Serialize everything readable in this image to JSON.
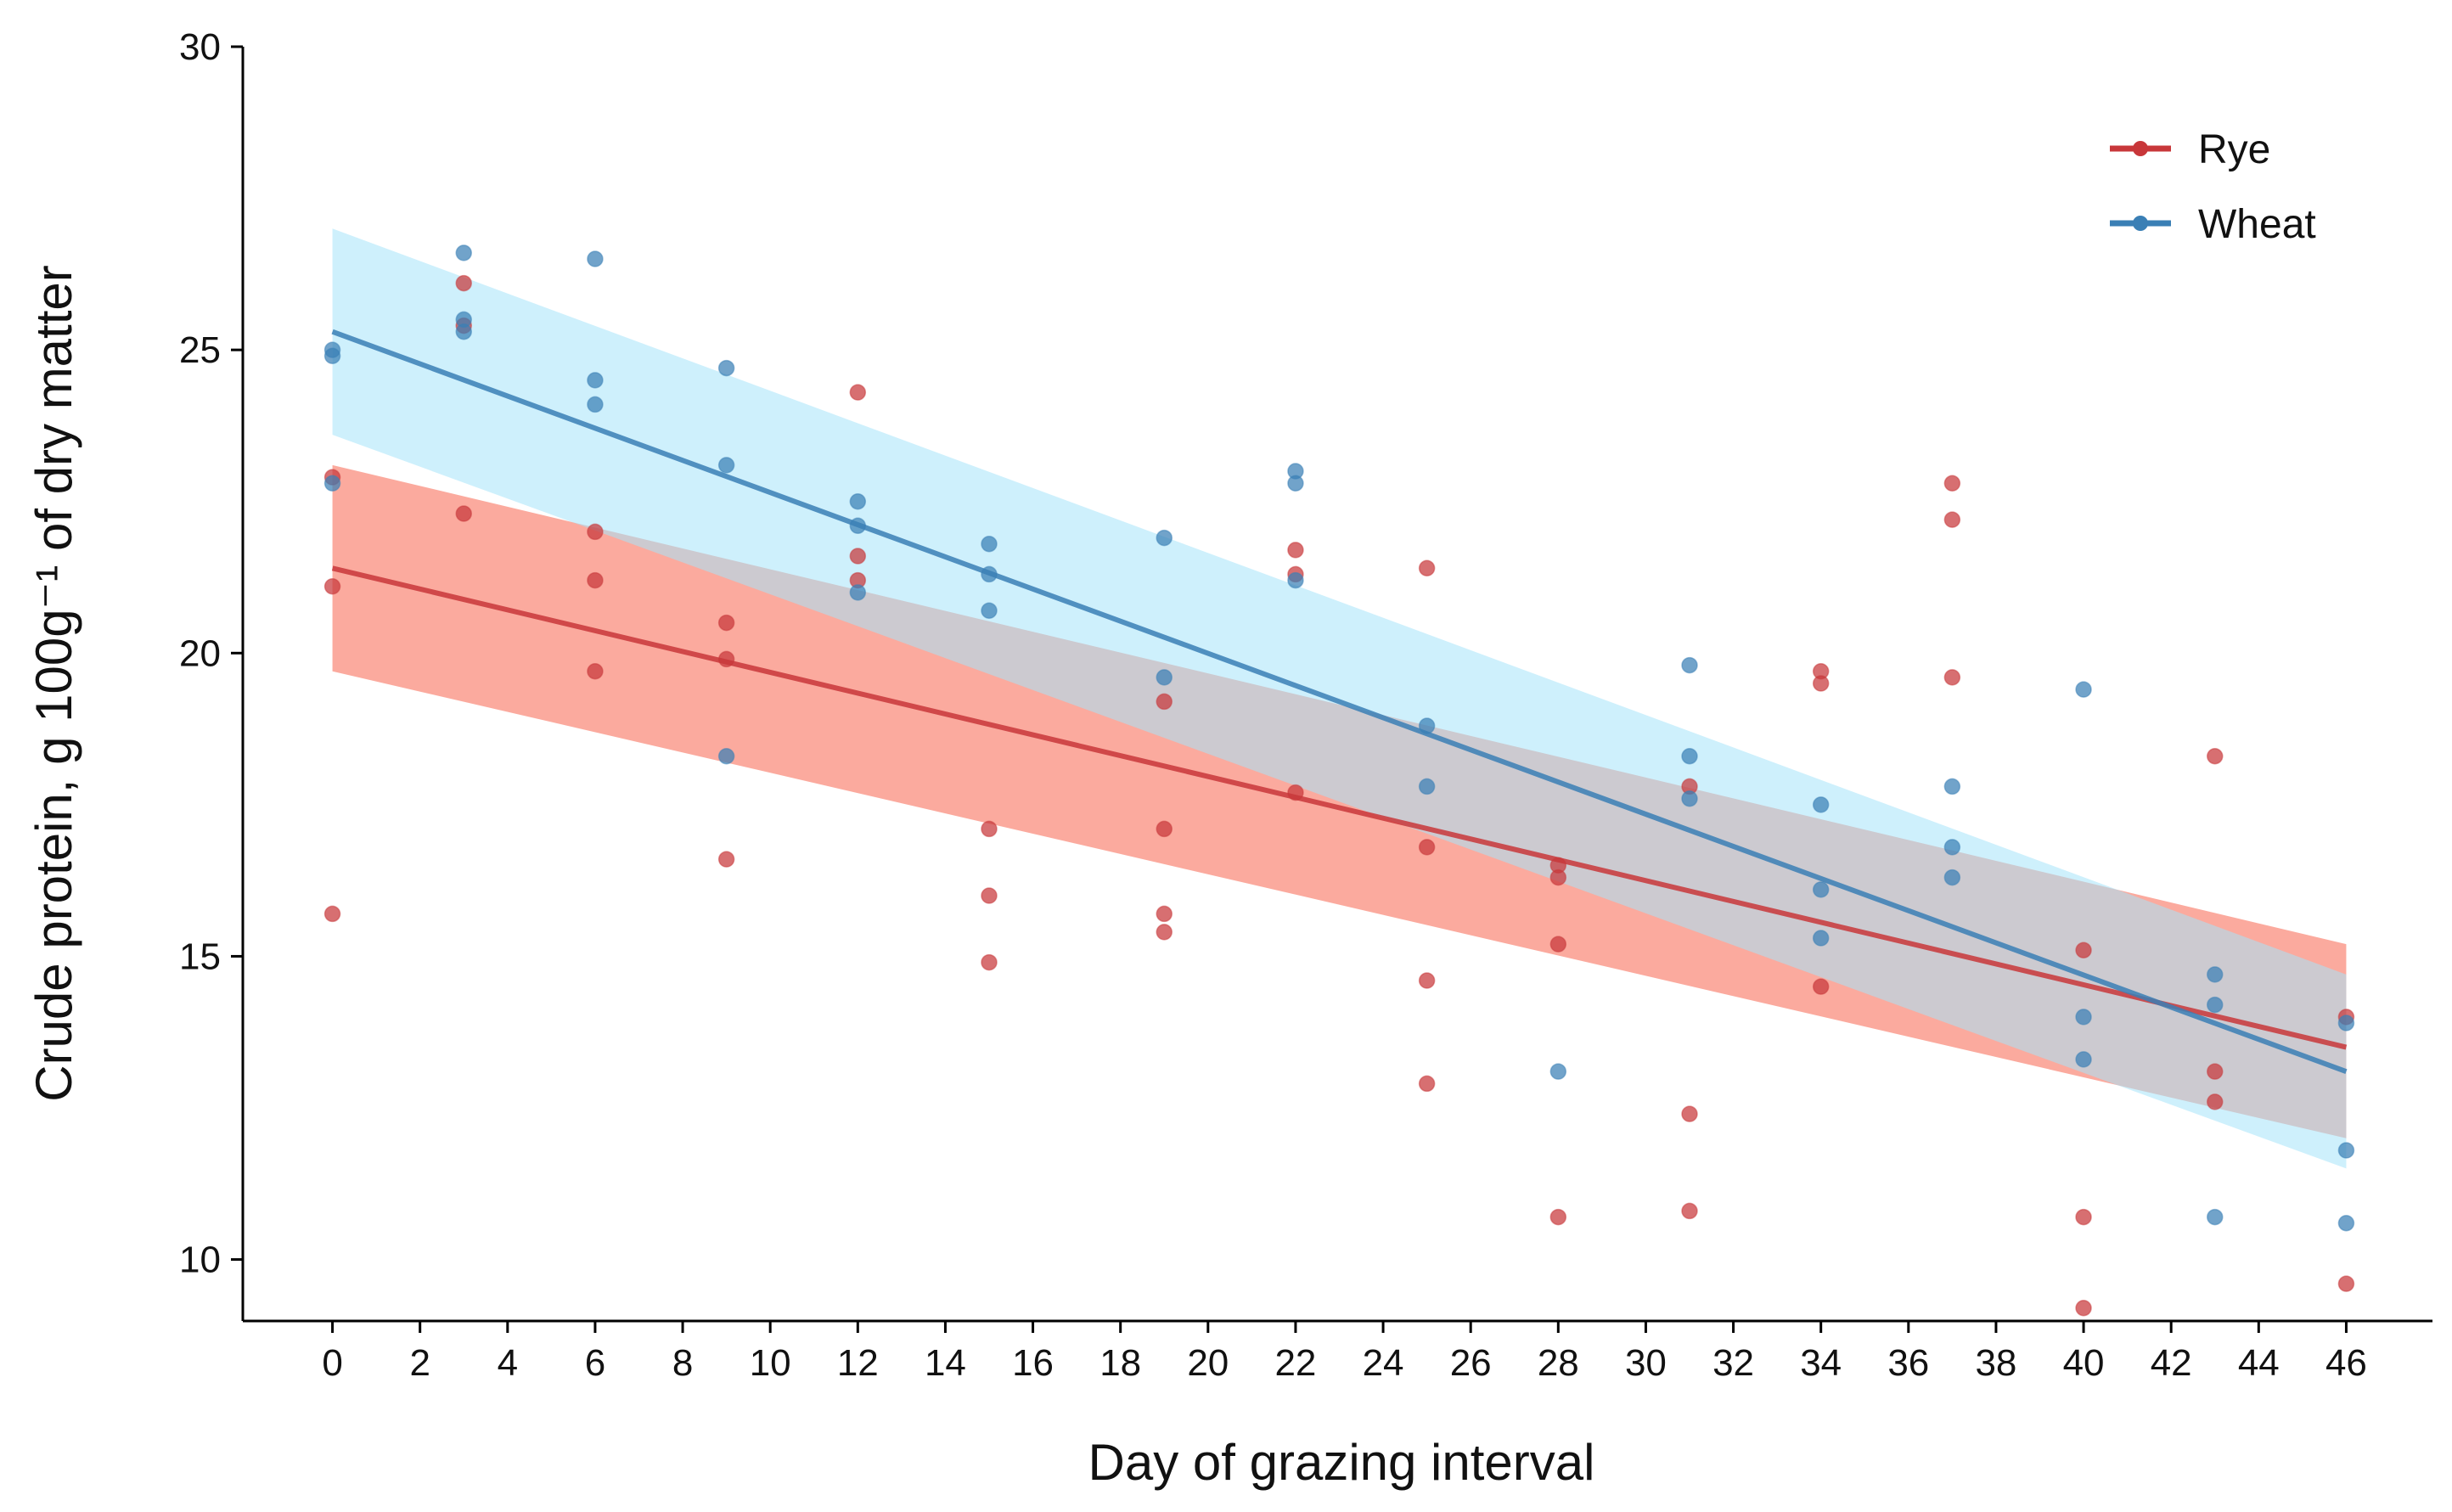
{
  "chart_data": {
    "type": "scatter",
    "title": "",
    "xlabel": "Day of grazing interval",
    "ylabel": "Crude protein, g 100g⁻¹ of dry matter",
    "xlim": [
      -1,
      47
    ],
    "ylim": [
      9,
      30
    ],
    "x_ticks": [
      0,
      2,
      4,
      6,
      8,
      10,
      12,
      14,
      16,
      18,
      20,
      22,
      24,
      26,
      28,
      30,
      32,
      34,
      36,
      38,
      40,
      42,
      44,
      46
    ],
    "y_ticks": [
      10,
      15,
      20,
      25,
      30
    ],
    "legend_position": "top-right",
    "series": [
      {
        "name": "Rye",
        "color": "#c8373a",
        "band_color": "#fa8e7e",
        "fit_line": {
          "x": [
            0,
            46
          ],
          "y": [
            21.4,
            13.5
          ]
        },
        "confidence_band": {
          "x": [
            0,
            46
          ],
          "lower": [
            19.7,
            12.0
          ],
          "upper": [
            23.1,
            15.2
          ]
        },
        "points": [
          {
            "x": 0,
            "y": 22.9
          },
          {
            "x": 0,
            "y": 21.1
          },
          {
            "x": 0,
            "y": 15.7
          },
          {
            "x": 3,
            "y": 26.1
          },
          {
            "x": 3,
            "y": 25.4
          },
          {
            "x": 3,
            "y": 22.3
          },
          {
            "x": 6,
            "y": 22.0
          },
          {
            "x": 6,
            "y": 21.2
          },
          {
            "x": 6,
            "y": 19.7
          },
          {
            "x": 9,
            "y": 20.5
          },
          {
            "x": 9,
            "y": 19.9
          },
          {
            "x": 9,
            "y": 16.6
          },
          {
            "x": 12,
            "y": 24.3
          },
          {
            "x": 12,
            "y": 21.6
          },
          {
            "x": 12,
            "y": 21.2
          },
          {
            "x": 15,
            "y": 17.1
          },
          {
            "x": 15,
            "y": 16.0
          },
          {
            "x": 15,
            "y": 14.9
          },
          {
            "x": 19,
            "y": 19.2
          },
          {
            "x": 19,
            "y": 17.1
          },
          {
            "x": 19,
            "y": 15.7
          },
          {
            "x": 19,
            "y": 15.4
          },
          {
            "x": 22,
            "y": 21.7
          },
          {
            "x": 22,
            "y": 21.3
          },
          {
            "x": 22,
            "y": 17.7
          },
          {
            "x": 25,
            "y": 21.4
          },
          {
            "x": 25,
            "y": 16.8
          },
          {
            "x": 25,
            "y": 14.6
          },
          {
            "x": 25,
            "y": 12.9
          },
          {
            "x": 28,
            "y": 16.5
          },
          {
            "x": 28,
            "y": 16.3
          },
          {
            "x": 28,
            "y": 15.2
          },
          {
            "x": 28,
            "y": 10.7
          },
          {
            "x": 31,
            "y": 17.8
          },
          {
            "x": 31,
            "y": 12.4
          },
          {
            "x": 31,
            "y": 10.8
          },
          {
            "x": 34,
            "y": 19.7
          },
          {
            "x": 34,
            "y": 19.5
          },
          {
            "x": 34,
            "y": 14.5
          },
          {
            "x": 37,
            "y": 22.8
          },
          {
            "x": 37,
            "y": 22.2
          },
          {
            "x": 37,
            "y": 19.6
          },
          {
            "x": 40,
            "y": 15.1
          },
          {
            "x": 40,
            "y": 10.7
          },
          {
            "x": 40,
            "y": 9.2
          },
          {
            "x": 43,
            "y": 18.3
          },
          {
            "x": 43,
            "y": 13.1
          },
          {
            "x": 43,
            "y": 12.6
          },
          {
            "x": 46,
            "y": 14.0
          },
          {
            "x": 46,
            "y": 9.6
          }
        ]
      },
      {
        "name": "Wheat",
        "color": "#3a7fb5",
        "band_color": "#a6e3fa",
        "fit_line": {
          "x": [
            0,
            46
          ],
          "y": [
            25.3,
            13.1
          ]
        },
        "confidence_band": {
          "x": [
            0,
            46
          ],
          "lower": [
            23.6,
            11.5
          ],
          "upper": [
            27.0,
            14.7
          ]
        },
        "points": [
          {
            "x": 0,
            "y": 25.0
          },
          {
            "x": 0,
            "y": 24.9
          },
          {
            "x": 0,
            "y": 22.8
          },
          {
            "x": 3,
            "y": 26.6
          },
          {
            "x": 3,
            "y": 25.5
          },
          {
            "x": 3,
            "y": 25.3
          },
          {
            "x": 6,
            "y": 26.5
          },
          {
            "x": 6,
            "y": 24.5
          },
          {
            "x": 6,
            "y": 24.1
          },
          {
            "x": 9,
            "y": 24.7
          },
          {
            "x": 9,
            "y": 23.1
          },
          {
            "x": 9,
            "y": 18.3
          },
          {
            "x": 12,
            "y": 22.5
          },
          {
            "x": 12,
            "y": 22.1
          },
          {
            "x": 12,
            "y": 21.0
          },
          {
            "x": 15,
            "y": 21.8
          },
          {
            "x": 15,
            "y": 21.3
          },
          {
            "x": 15,
            "y": 20.7
          },
          {
            "x": 19,
            "y": 21.9
          },
          {
            "x": 19,
            "y": 19.6
          },
          {
            "x": 22,
            "y": 23.0
          },
          {
            "x": 22,
            "y": 22.8
          },
          {
            "x": 22,
            "y": 21.2
          },
          {
            "x": 25,
            "y": 18.8
          },
          {
            "x": 25,
            "y": 17.8
          },
          {
            "x": 28,
            "y": 13.1
          },
          {
            "x": 31,
            "y": 19.8
          },
          {
            "x": 31,
            "y": 18.3
          },
          {
            "x": 31,
            "y": 17.6
          },
          {
            "x": 34,
            "y": 17.5
          },
          {
            "x": 34,
            "y": 16.1
          },
          {
            "x": 34,
            "y": 15.3
          },
          {
            "x": 37,
            "y": 17.8
          },
          {
            "x": 37,
            "y": 16.8
          },
          {
            "x": 37,
            "y": 16.3
          },
          {
            "x": 40,
            "y": 19.4
          },
          {
            "x": 40,
            "y": 14.0
          },
          {
            "x": 40,
            "y": 13.3
          },
          {
            "x": 43,
            "y": 14.7
          },
          {
            "x": 43,
            "y": 14.2
          },
          {
            "x": 43,
            "y": 10.7
          },
          {
            "x": 46,
            "y": 13.9
          },
          {
            "x": 46,
            "y": 11.8
          },
          {
            "x": 46,
            "y": 10.6
          }
        ]
      }
    ]
  }
}
